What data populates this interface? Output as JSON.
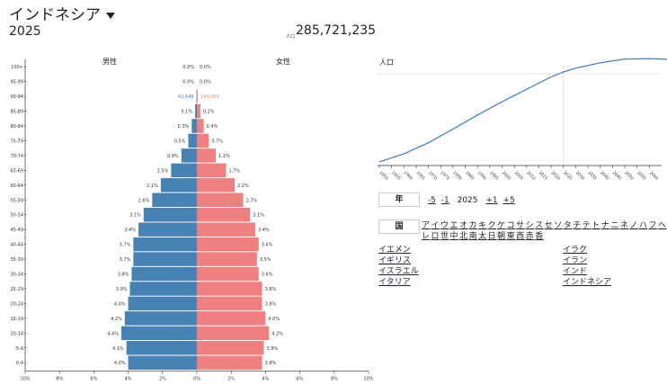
{
  "header": {
    "country": "インドネシア",
    "year": "2025",
    "pop_label": "人口",
    "pop_value": "285,721,235"
  },
  "pyramid": {
    "male_label": "男性",
    "female_label": "女性",
    "groups": [
      {
        "age": "100+",
        "m": 0.0,
        "f": 0.0,
        "ml": "0.0%",
        "fl": "0.0%"
      },
      {
        "age": "95-99",
        "m": 0.0,
        "f": 0.0,
        "ml": "0.0%",
        "fl": "0.0%"
      },
      {
        "age": "90-94",
        "m": 0.02,
        "f": 0.05,
        "ml": "62,646",
        "fl": "149,009"
      },
      {
        "age": "85-89",
        "m": 0.1,
        "f": 0.2,
        "ml": "0.1%",
        "fl": "0.2%"
      },
      {
        "age": "80-84",
        "m": 0.3,
        "f": 0.4,
        "ml": "0.3%",
        "fl": "0.4%"
      },
      {
        "age": "75-79",
        "m": 0.5,
        "f": 0.7,
        "ml": "0.5%",
        "fl": "0.7%"
      },
      {
        "age": "70-74",
        "m": 0.9,
        "f": 1.1,
        "ml": "0.9%",
        "fl": "1.1%"
      },
      {
        "age": "65-69",
        "m": 1.5,
        "f": 1.7,
        "ml": "1.5%",
        "fl": "1.7%"
      },
      {
        "age": "60-64",
        "m": 2.1,
        "f": 2.2,
        "ml": "2.1%",
        "fl": "2.2%"
      },
      {
        "age": "55-59",
        "m": 2.6,
        "f": 2.7,
        "ml": "2.6%",
        "fl": "2.7%"
      },
      {
        "age": "50-54",
        "m": 3.1,
        "f": 3.1,
        "ml": "3.1%",
        "fl": "3.1%"
      },
      {
        "age": "45-49",
        "m": 3.4,
        "f": 3.4,
        "ml": "3.4%",
        "fl": "3.4%"
      },
      {
        "age": "40-44",
        "m": 3.7,
        "f": 3.6,
        "ml": "3.7%",
        "fl": "3.6%"
      },
      {
        "age": "35-39",
        "m": 3.7,
        "f": 3.5,
        "ml": "3.7%",
        "fl": "3.5%"
      },
      {
        "age": "30-34",
        "m": 3.8,
        "f": 3.6,
        "ml": "3.8%",
        "fl": "3.6%"
      },
      {
        "age": "25-29",
        "m": 3.9,
        "f": 3.8,
        "ml": "3.9%",
        "fl": "3.8%"
      },
      {
        "age": "20-24",
        "m": 4.0,
        "f": 3.8,
        "ml": "4.0%",
        "fl": "3.8%"
      },
      {
        "age": "15-19",
        "m": 4.2,
        "f": 4.0,
        "ml": "4.2%",
        "fl": "4.0%"
      },
      {
        "age": "10-14",
        "m": 4.4,
        "f": 4.2,
        "ml": "4.4%",
        "fl": "4.2%"
      },
      {
        "age": "5-9",
        "m": 4.1,
        "f": 3.9,
        "ml": "4.1%",
        "fl": "3.9%"
      },
      {
        "age": "0-4",
        "m": 4.0,
        "f": 3.8,
        "ml": "4.0%",
        "fl": "3.8%"
      }
    ],
    "x_ticks": [
      "10%",
      "8%",
      "6%",
      "4%",
      "2%",
      "0%",
      "2%",
      "4%",
      "6%",
      "8%",
      "10%"
    ],
    "male_color": "#4682b4",
    "female_color": "#f08080"
  },
  "pop_chart": {
    "title": "人口",
    "x_ticks": [
      "1950",
      "1955",
      "1960",
      "1965",
      "1970",
      "1975",
      "1980",
      "1985",
      "1990",
      "1995",
      "2000",
      "2005",
      "2010",
      "2015",
      "2020",
      "2025",
      "2030",
      "2035",
      "2040",
      "2045",
      "2050",
      "2055",
      "2060"
    ],
    "x": [
      1950,
      1960,
      1970,
      1980,
      1990,
      2000,
      2010,
      2020,
      2025,
      2030,
      2040,
      2050,
      2060,
      2070
    ],
    "y": [
      69,
      88,
      115,
      148,
      182,
      214,
      244,
      274,
      286,
      295,
      308,
      317,
      318,
      316
    ],
    "current_year": 2025,
    "line_color": "#3a78c2"
  },
  "controls": {
    "year_box": "年",
    "minus5": "-5",
    "minus1": "-1",
    "year": "2025",
    "plus1": "+1",
    "plus5": "+5",
    "country_box": "国",
    "kana_row1": [
      "ア",
      "イ",
      "ウ",
      "エ",
      "オ",
      "カ",
      "キ",
      "ク",
      "ケ",
      "コ",
      "サ",
      "シ",
      "ス",
      "セ",
      "ソ",
      "タ",
      "チ",
      "テ",
      "ト",
      "ナ",
      "ニ",
      "ネ",
      "ノ",
      "ハ",
      "フ",
      "ヘ"
    ],
    "kana_row2": [
      "レ",
      "ロ",
      "世",
      "中",
      "北",
      "南",
      "太",
      "日",
      "朝",
      "東",
      "西",
      "赤",
      "香"
    ]
  },
  "countries": [
    "イエメン",
    "イギリス",
    "イスラエル",
    "イタリア",
    "イラク",
    "イラン",
    "インド",
    "インドネシア"
  ]
}
